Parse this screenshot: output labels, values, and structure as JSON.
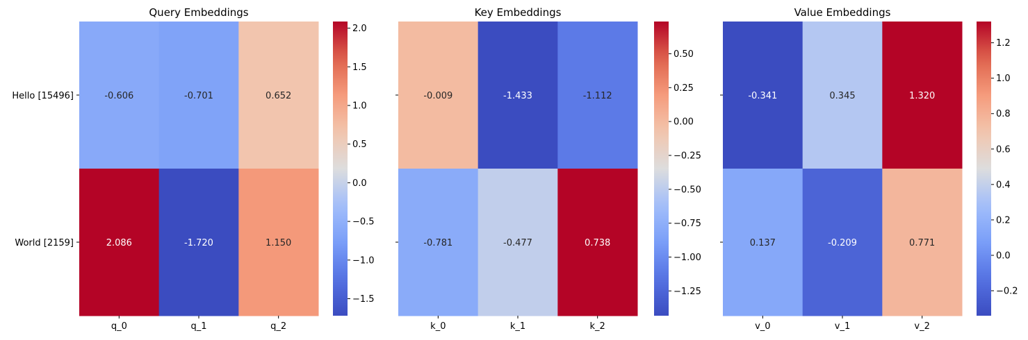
{
  "chart_data": [
    {
      "type": "heatmap",
      "title": "Query Embeddings",
      "rows": [
        "Hello [15496]",
        "World [2159]"
      ],
      "columns": [
        "q_0",
        "q_1",
        "q_2"
      ],
      "values": [
        [
          -0.606,
          -0.701,
          0.652
        ],
        [
          2.086,
          -1.72,
          1.15
        ]
      ],
      "value_labels": [
        [
          "-0.606",
          "-0.701",
          "0.652"
        ],
        [
          "2.086",
          "-1.720",
          "1.150"
        ]
      ],
      "colormap": "coolwarm",
      "vmin": -1.72,
      "vmax": 2.086,
      "colorbar_ticks": [
        -1.5,
        -1.0,
        -0.5,
        0.0,
        0.5,
        1.0,
        1.5,
        2.0
      ],
      "colorbar_tick_labels": [
        "−1.5",
        "−1.0",
        "−0.5",
        "0.0",
        "0.5",
        "1.0",
        "1.5",
        "2.0"
      ],
      "show_row_labels": true
    },
    {
      "type": "heatmap",
      "title": "Key Embeddings",
      "rows": [
        "Hello [15496]",
        "World [2159]"
      ],
      "columns": [
        "k_0",
        "k_1",
        "k_2"
      ],
      "values": [
        [
          -0.009,
          -1.433,
          -1.112
        ],
        [
          -0.781,
          -0.477,
          0.738
        ]
      ],
      "value_labels": [
        [
          "-0.009",
          "-1.433",
          "-1.112"
        ],
        [
          "-0.781",
          "-0.477",
          "0.738"
        ]
      ],
      "colormap": "coolwarm",
      "vmin": -1.433,
      "vmax": 0.738,
      "colorbar_ticks": [
        -1.25,
        -1.0,
        -0.75,
        -0.5,
        -0.25,
        0.0,
        0.25,
        0.5
      ],
      "colorbar_tick_labels": [
        "−1.25",
        "−1.00",
        "−0.75",
        "−0.50",
        "−0.25",
        "0.00",
        "0.25",
        "0.50"
      ],
      "show_row_labels": false
    },
    {
      "type": "heatmap",
      "title": "Value Embeddings",
      "rows": [
        "Hello [15496]",
        "World [2159]"
      ],
      "columns": [
        "v_0",
        "v_1",
        "v_2"
      ],
      "values": [
        [
          -0.341,
          0.345,
          1.32
        ],
        [
          0.137,
          -0.209,
          0.771
        ]
      ],
      "value_labels": [
        [
          "-0.341",
          "0.345",
          "1.320"
        ],
        [
          "0.137",
          "-0.209",
          "0.771"
        ]
      ],
      "colormap": "coolwarm",
      "vmin": -0.341,
      "vmax": 1.32,
      "colorbar_ticks": [
        -0.2,
        0.0,
        0.2,
        0.4,
        0.6,
        0.8,
        1.0,
        1.2
      ],
      "colorbar_tick_labels": [
        "−0.2",
        "0.0",
        "0.2",
        "0.4",
        "0.6",
        "0.8",
        "1.0",
        "1.2"
      ],
      "show_row_labels": false
    }
  ]
}
